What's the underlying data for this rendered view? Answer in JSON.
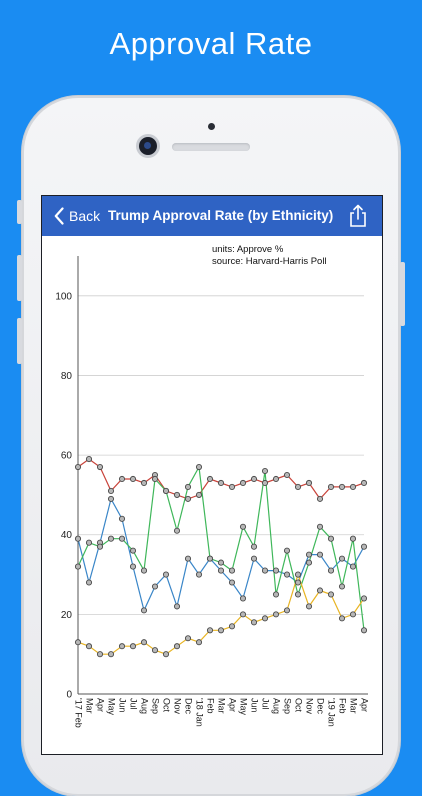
{
  "headline": "Approval Rate",
  "nav": {
    "back_label": "Back",
    "title": "Trump Approval Rate (by Ethnicity)"
  },
  "icons": {
    "back": "chevron-left-icon",
    "share": "share-icon"
  },
  "colors": {
    "background": "#1a8cf2",
    "navbar": "#2f63c4",
    "series": [
      "#c9433a",
      "#3a86c8",
      "#3fb75a",
      "#e8b423"
    ]
  },
  "chart_data": {
    "type": "line",
    "notes": [
      "units: Approve %",
      "source: Harvard-Harris Poll"
    ],
    "ylim": [
      0,
      110
    ],
    "yticks": [
      0,
      20,
      40,
      60,
      80,
      100
    ],
    "grid": true,
    "x": [
      "'17 Feb",
      "Mar",
      "Apr",
      "May",
      "Jun",
      "Jul",
      "Aug",
      "Sep",
      "Oct",
      "Nov",
      "Dec",
      "'18 Jan",
      "Feb",
      "Mar",
      "Apr",
      "May",
      "Jun",
      "Jul",
      "Aug",
      "Sep",
      "Oct",
      "Nov",
      "Dec",
      "'19 Jan",
      "Feb",
      "Mar",
      "Apr"
    ],
    "series": [
      {
        "values": [
          57,
          59,
          57,
          51,
          54,
          54,
          53,
          55,
          51,
          50,
          49,
          50,
          54,
          53,
          52,
          53,
          54,
          53,
          54,
          55,
          52,
          53,
          49,
          52,
          52,
          52,
          53
        ]
      },
      {
        "values": [
          39,
          28,
          38,
          49,
          44,
          32,
          21,
          27,
          30,
          22,
          34,
          30,
          34,
          31,
          28,
          24,
          34,
          31,
          31,
          30,
          28,
          35,
          35,
          31,
          34,
          32,
          37
        ]
      },
      {
        "values": [
          32,
          38,
          37,
          39,
          39,
          36,
          31,
          54,
          51,
          41,
          52,
          57,
          34,
          33,
          31,
          42,
          37,
          56,
          25,
          36,
          25,
          33,
          42,
          39,
          27,
          39,
          16
        ]
      },
      {
        "values": [
          13,
          12,
          10,
          10,
          12,
          12,
          13,
          11,
          10,
          12,
          14,
          13,
          16,
          16,
          17,
          20,
          18,
          19,
          20,
          21,
          30,
          22,
          26,
          25,
          19,
          20,
          24
        ]
      }
    ]
  }
}
